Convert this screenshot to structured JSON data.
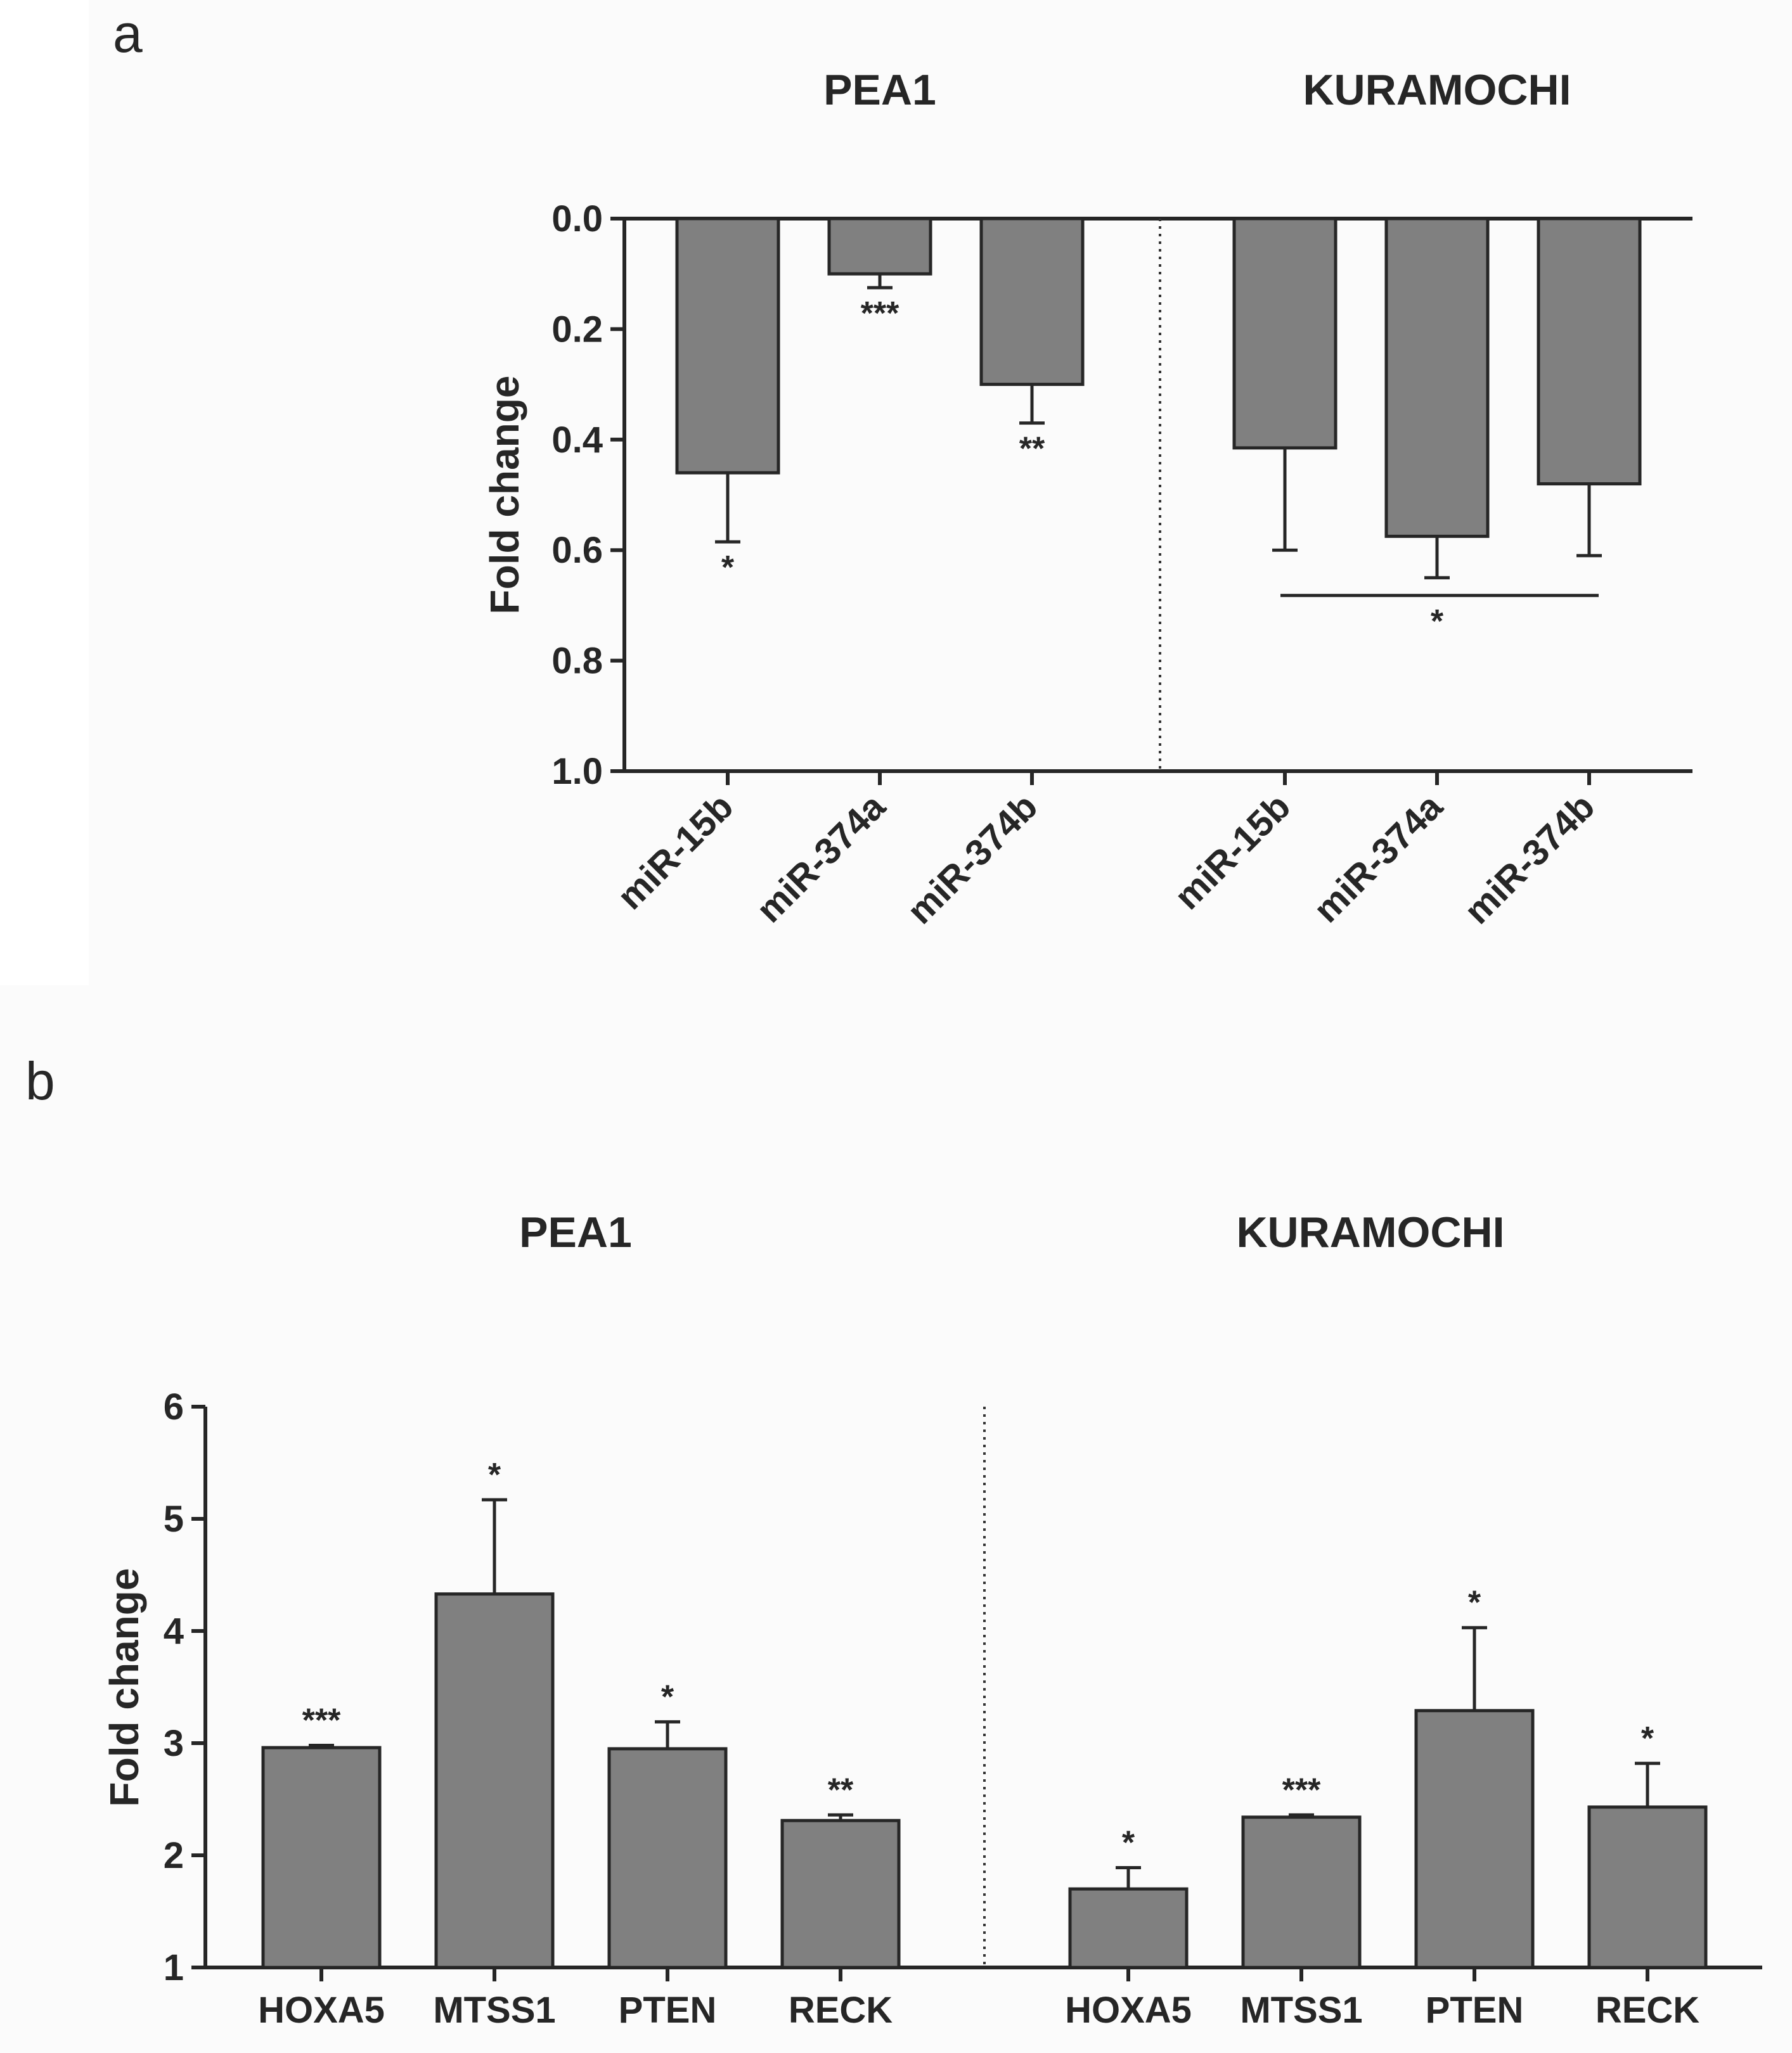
{
  "chart_data": [
    {
      "panel": "a",
      "type": "bar",
      "ylabel": "Fold change",
      "ylim": [
        0,
        1
      ],
      "y_inverted": true,
      "yticks": [
        "0.0",
        "0.2",
        "0.4",
        "0.6",
        "0.8",
        "1.0"
      ],
      "groups": [
        {
          "title": "PEA1",
          "categories": [
            "miR-15b",
            "miR-374a",
            "miR-374b"
          ],
          "values": [
            0.46,
            0.1,
            0.3
          ],
          "errors": [
            0.125,
            0.025,
            0.07
          ],
          "significance": [
            "*",
            "***",
            "**"
          ]
        },
        {
          "title": "KURAMOCHI",
          "categories": [
            "miR-15b",
            "miR-374a",
            "miR-374b"
          ],
          "values": [
            0.415,
            0.575,
            0.48
          ],
          "errors": [
            0.185,
            0.075,
            0.13
          ],
          "group_significance": "*"
        }
      ]
    },
    {
      "panel": "b",
      "type": "bar",
      "ylabel": "Fold change",
      "ylim": [
        1,
        6
      ],
      "yticks": [
        "1",
        "2",
        "3",
        "4",
        "5",
        "6"
      ],
      "groups": [
        {
          "title": "PEA1",
          "categories": [
            "HOXA5",
            "MTSS1",
            "PTEN",
            "RECK"
          ],
          "values": [
            2.96,
            4.33,
            2.95,
            2.31
          ],
          "errors": [
            0.02,
            0.84,
            0.24,
            0.05
          ],
          "significance": [
            "***",
            "*",
            "*",
            "**"
          ]
        },
        {
          "title": "KURAMOCHI",
          "categories": [
            "HOXA5",
            "MTSS1",
            "PTEN",
            "RECK"
          ],
          "values": [
            1.7,
            2.34,
            3.29,
            2.43
          ],
          "errors": [
            0.19,
            0.02,
            0.74,
            0.39
          ],
          "significance": [
            "*",
            "***",
            "*",
            "*"
          ]
        }
      ]
    }
  ]
}
